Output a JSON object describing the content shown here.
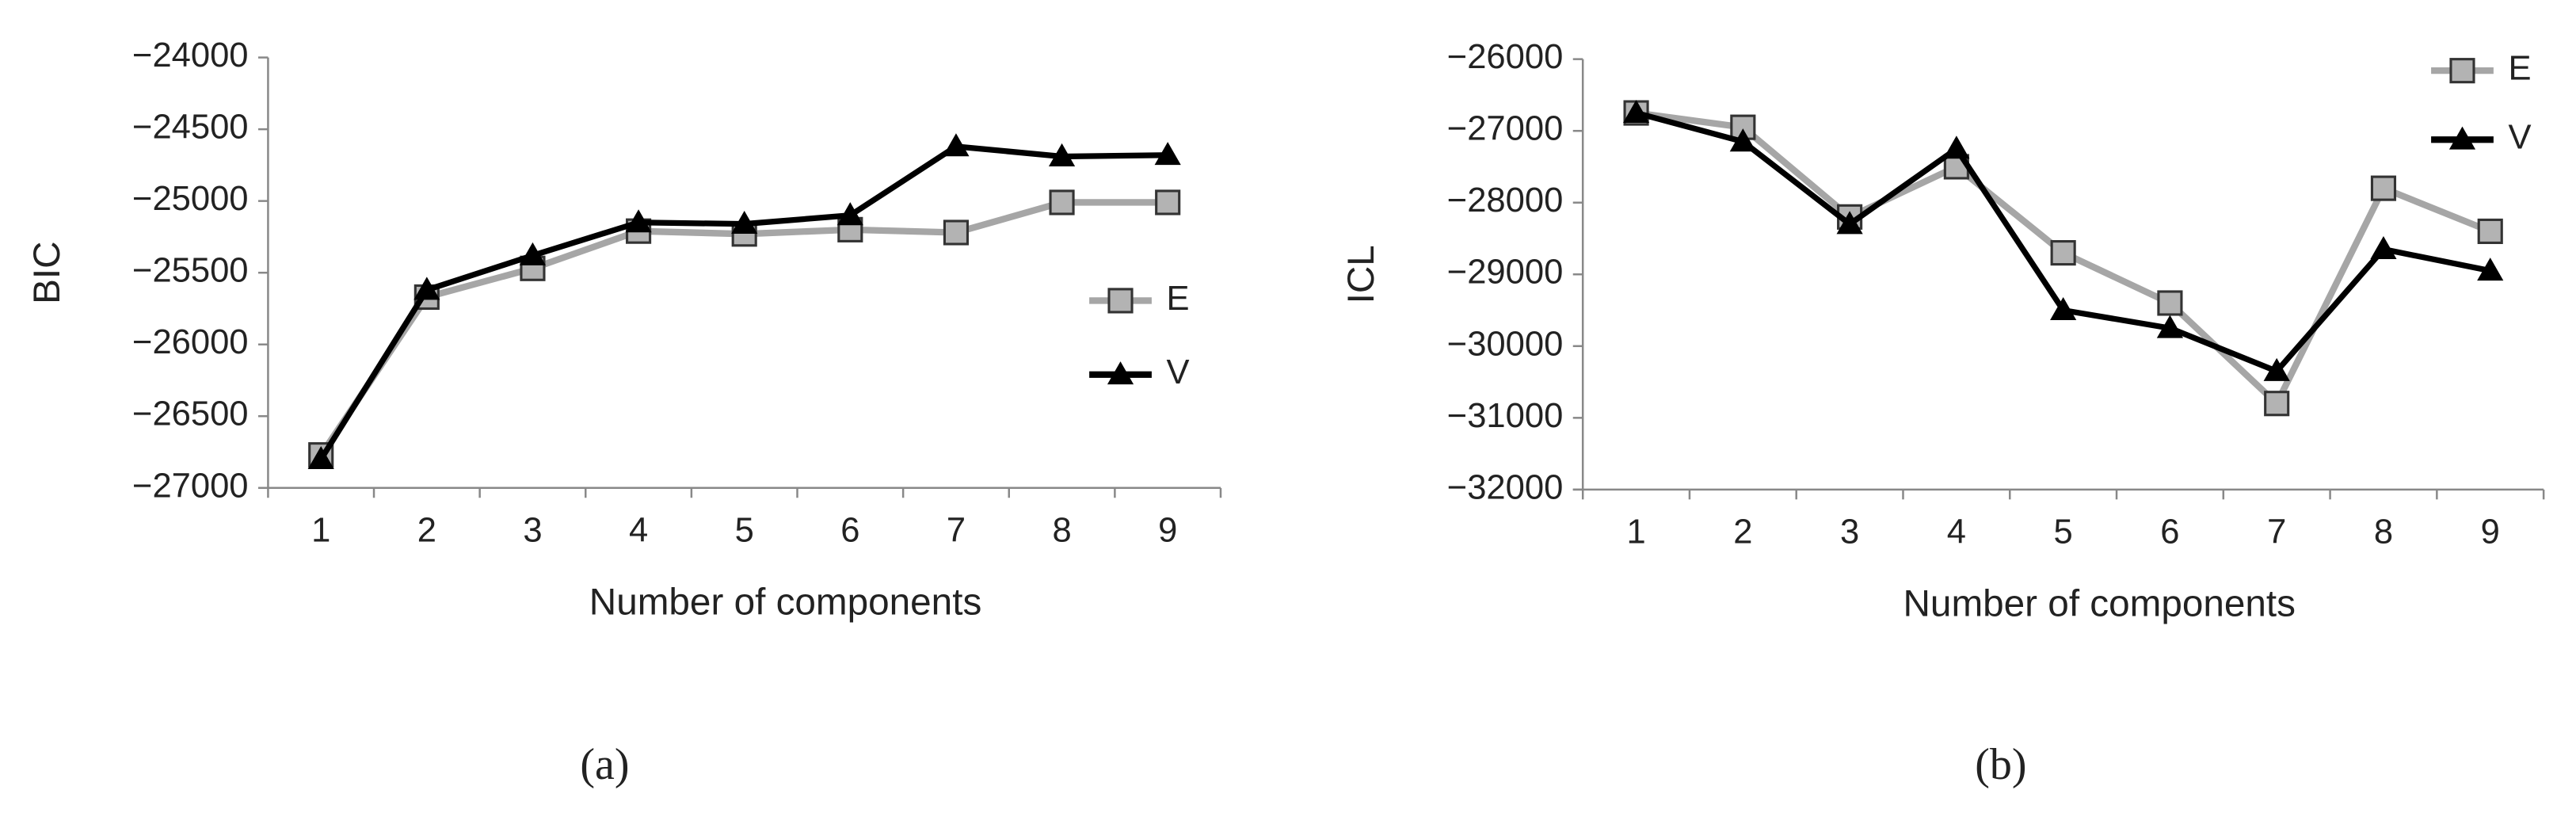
{
  "chart_data": [
    {
      "type": "line",
      "y_label": "BIC",
      "x_label": "Number of components",
      "caption": "(a)",
      "categories": [
        "1",
        "2",
        "3",
        "4",
        "5",
        "6",
        "7",
        "8",
        "9"
      ],
      "ylim": [
        -27000,
        -24000
      ],
      "yticks": [
        {
          "value": -27000,
          "label": "−27000"
        },
        {
          "value": -26500,
          "label": "−26500"
        },
        {
          "value": -26000,
          "label": "−26000"
        },
        {
          "value": -25500,
          "label": "−25500"
        },
        {
          "value": -25000,
          "label": "−25000"
        },
        {
          "value": -24500,
          "label": "−24500"
        },
        {
          "value": -24000,
          "label": "−24000"
        }
      ],
      "legend": "right",
      "series": [
        {
          "name": "E",
          "color": "#a6a6a6",
          "marker": "square",
          "values": [
            -26770,
            -25670,
            -25470,
            -25210,
            -25230,
            -25200,
            -25220,
            -25010,
            -25010
          ]
        },
        {
          "name": "V",
          "color": "#000000",
          "marker": "triangle",
          "values": [
            -26800,
            -25620,
            -25380,
            -25150,
            -25160,
            -25100,
            -24620,
            -24690,
            -24680
          ]
        }
      ]
    },
    {
      "type": "line",
      "y_label": "ICL",
      "x_label": "Number of components",
      "caption": "(b)",
      "categories": [
        "1",
        "2",
        "3",
        "4",
        "5",
        "6",
        "7",
        "8",
        "9"
      ],
      "ylim": [
        -32000,
        -26000
      ],
      "yticks": [
        {
          "value": -32000,
          "label": "−32000"
        },
        {
          "value": -31000,
          "label": "−31000"
        },
        {
          "value": -30000,
          "label": "−30000"
        },
        {
          "value": -29000,
          "label": "−29000"
        },
        {
          "value": -28000,
          "label": "−28000"
        },
        {
          "value": -27000,
          "label": "−27000"
        },
        {
          "value": -26000,
          "label": "−26000"
        }
      ],
      "legend": "top right",
      "series": [
        {
          "name": "E",
          "color": "#a6a6a6",
          "marker": "square",
          "values": [
            -26750,
            -26950,
            -28200,
            -27500,
            -28700,
            -29400,
            -30800,
            -27800,
            -28400
          ]
        },
        {
          "name": "V",
          "color": "#000000",
          "marker": "triangle",
          "values": [
            -26750,
            -27150,
            -28300,
            -27250,
            -29500,
            -29750,
            -30350,
            -28650,
            -28950
          ]
        }
      ]
    }
  ]
}
